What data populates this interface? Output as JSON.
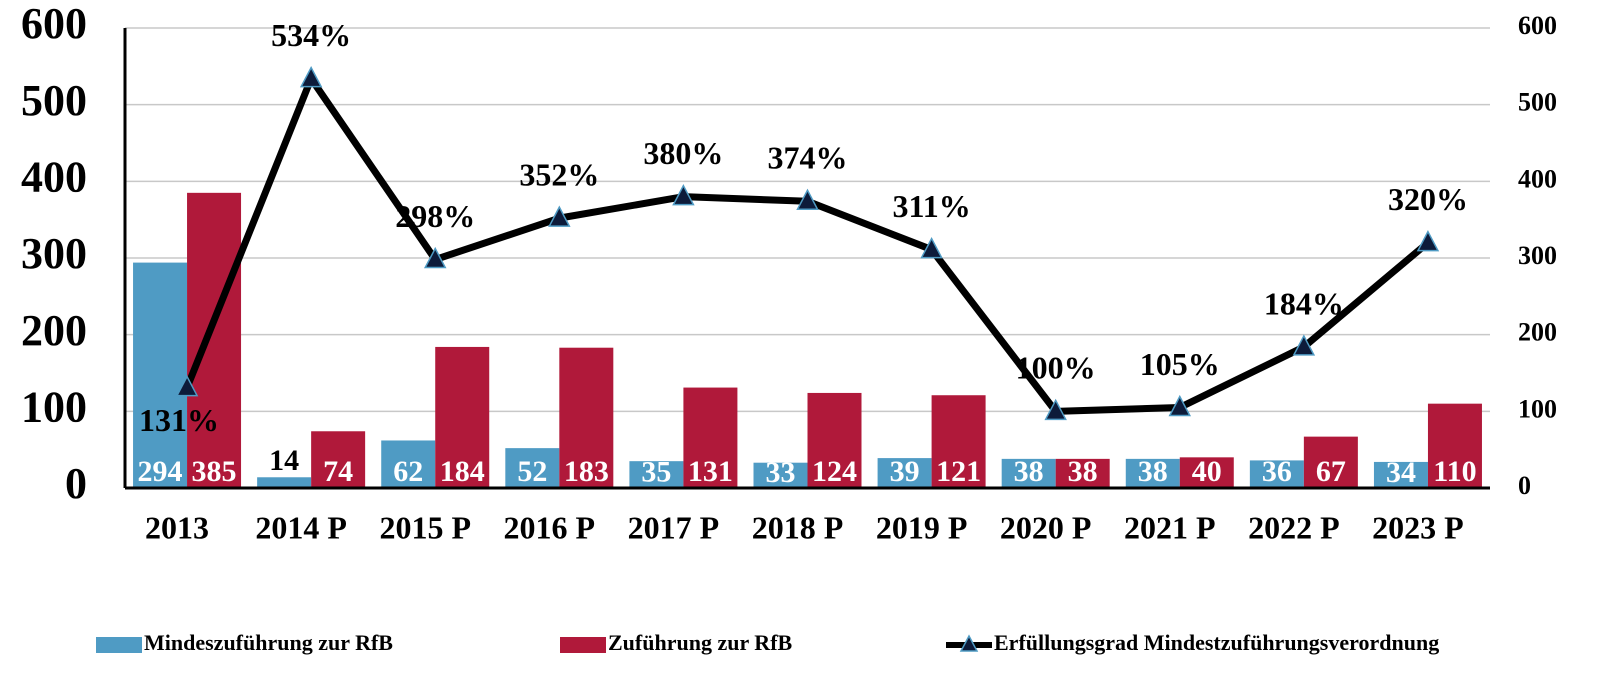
{
  "chart_data": {
    "type": "bar",
    "categories": [
      "2013",
      "2014 P",
      "2015 P",
      "2016 P",
      "2017 P",
      "2018 P",
      "2019 P",
      "2020 P",
      "2021 P",
      "2022 P",
      "2023 P"
    ],
    "series": [
      {
        "name": "Mindeszuführung zur RfB",
        "color": "#4f9bc4",
        "values": [
          294,
          14,
          62,
          52,
          35,
          33,
          39,
          38,
          38,
          36,
          34
        ]
      },
      {
        "name": "Zuführung zur RfB",
        "color": "#b0193a",
        "values": [
          385,
          74,
          184,
          183,
          131,
          124,
          121,
          38,
          40,
          67,
          110
        ]
      },
      {
        "name": "Erfüllungsgrad Mindestzuführungsverordnung",
        "color": "#000000",
        "type": "line",
        "axis": "y2",
        "values": [
          131,
          534,
          298,
          352,
          380,
          374,
          311,
          100,
          105,
          184,
          320
        ],
        "value_labels": [
          "131%",
          "534%",
          "298%",
          "352%",
          "380%",
          "374%",
          "311%",
          "100%",
          "105%",
          "184%",
          "320%"
        ]
      }
    ],
    "ylim": [
      0,
      600
    ],
    "yticks": [
      0,
      100,
      200,
      300,
      400,
      500,
      600
    ],
    "y2lim": [
      0,
      600
    ],
    "y2ticks": [
      0,
      100,
      200,
      300,
      400,
      500,
      600
    ],
    "grid": true,
    "legend": "bottom"
  }
}
